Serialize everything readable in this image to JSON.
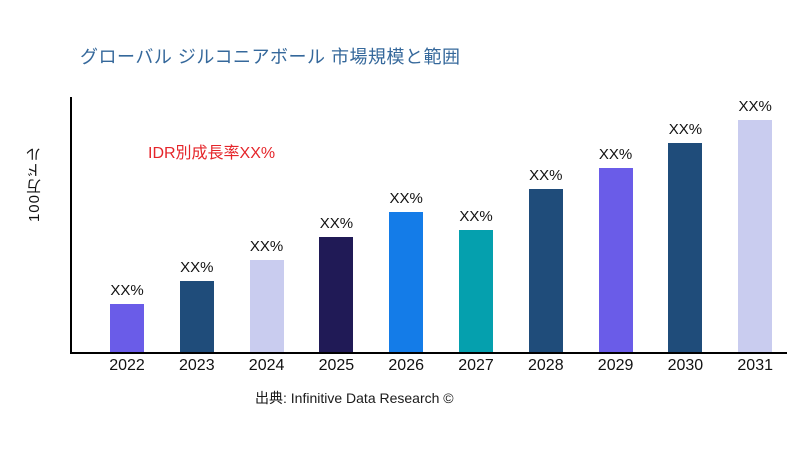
{
  "chart_data": {
    "type": "bar",
    "title": "グローバル ジルコニアボール 市場規模と範囲",
    "title_color": "#35689B",
    "ylabel": "100万ドル",
    "xlabel": "",
    "categories": [
      "2022",
      "2023",
      "2024",
      "2025",
      "2026",
      "2027",
      "2028",
      "2029",
      "2030",
      "2031"
    ],
    "bar_labels": [
      "XX%",
      "XX%",
      "XX%",
      "XX%",
      "XX%",
      "XX%",
      "XX%",
      "XX%",
      "XX%",
      "XX%"
    ],
    "values_relative": [
      19,
      28,
      36,
      45,
      55,
      48,
      64,
      72,
      82,
      91
    ],
    "ylim": [
      0,
      100
    ],
    "bar_colors": [
      "#6A5CE8",
      "#1F4C7A",
      "#C9CCEF",
      "#201A56",
      "#147CE8",
      "#05A0AE",
      "#1F4C7A",
      "#6A5CE8",
      "#1F4C7A",
      "#C9CCEF"
    ],
    "grid": false,
    "legend": null,
    "annotation": "IDR別成長率XX%",
    "annotation_color": "#E5252A",
    "source": "出典: Infinitive Data Research ©"
  }
}
